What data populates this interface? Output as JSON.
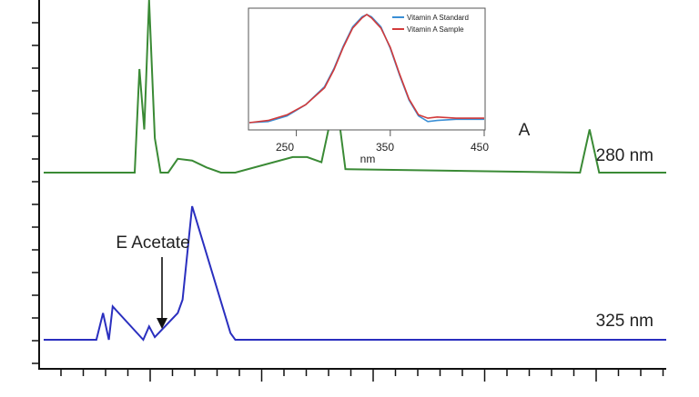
{
  "chart_data": [
    {
      "type": "line",
      "title": "",
      "xlabel": "",
      "ylabel": "",
      "grid": false,
      "series": [
        {
          "name": "280 nm",
          "color": "#3a8a35",
          "baseline": 0,
          "x": [
            0.0,
            0.6,
            0.95,
            1.0,
            1.05,
            1.1,
            1.16,
            1.22,
            1.3,
            1.4,
            1.55,
            1.7,
            1.85,
            2.0,
            2.6,
            2.75,
            2.9,
            3.05,
            3.15,
            5.6,
            5.7,
            5.8,
            6.5
          ],
          "y": [
            0,
            0,
            0,
            0.6,
            0.25,
            1.0,
            0.2,
            0.0,
            0.0,
            0.08,
            0.07,
            0.03,
            0.0,
            0.0,
            0.09,
            0.09,
            0.06,
            0.45,
            0.02,
            0.0,
            0.25,
            0.0,
            0.0
          ]
        },
        {
          "name": "325 nm",
          "color": "#2a2fbf",
          "baseline": 0,
          "x": [
            0.0,
            0.55,
            0.62,
            0.68,
            0.72,
            1.04,
            1.1,
            1.16,
            1.4,
            1.45,
            1.55,
            1.95,
            2.0,
            2.05,
            2.1,
            2.2,
            2.3,
            6.5
          ],
          "y": [
            0,
            0,
            0.2,
            0.0,
            0.25,
            0.0,
            0.1,
            0.02,
            0.2,
            0.3,
            1.0,
            0.05,
            0.0,
            0.0,
            0.0,
            0.0,
            0.0,
            0.0
          ]
        }
      ],
      "annotations": [
        {
          "text": "A",
          "near_series": "280 nm"
        },
        {
          "text": "E Acetate",
          "near_series": "325 nm",
          "arrow": true
        }
      ]
    },
    {
      "type": "line",
      "title": "",
      "xlabel": "nm",
      "ylabel": "",
      "xlim": [
        200,
        450
      ],
      "ylim": [
        0,
        1
      ],
      "x_ticks": [
        250,
        350,
        450
      ],
      "legend_position": "top-right",
      "grid": false,
      "series": [
        {
          "name": "Vitamin A Standard",
          "color": "#3a8fd6",
          "x": [
            200,
            220,
            240,
            260,
            280,
            290,
            300,
            310,
            320,
            325,
            330,
            340,
            350,
            360,
            370,
            380,
            390,
            400,
            420,
            450
          ],
          "y": [
            0.04,
            0.05,
            0.1,
            0.2,
            0.36,
            0.52,
            0.72,
            0.89,
            0.98,
            1.0,
            0.98,
            0.89,
            0.7,
            0.46,
            0.24,
            0.1,
            0.05,
            0.06,
            0.07,
            0.07
          ]
        },
        {
          "name": "Vitamin A Sample",
          "color": "#d23a3a",
          "x": [
            200,
            220,
            240,
            260,
            280,
            290,
            300,
            310,
            320,
            325,
            330,
            340,
            350,
            360,
            370,
            380,
            390,
            400,
            420,
            450
          ],
          "y": [
            0.04,
            0.06,
            0.11,
            0.2,
            0.35,
            0.51,
            0.71,
            0.88,
            0.97,
            1.0,
            0.97,
            0.88,
            0.71,
            0.47,
            0.25,
            0.11,
            0.08,
            0.09,
            0.08,
            0.08
          ]
        }
      ]
    }
  ]
}
